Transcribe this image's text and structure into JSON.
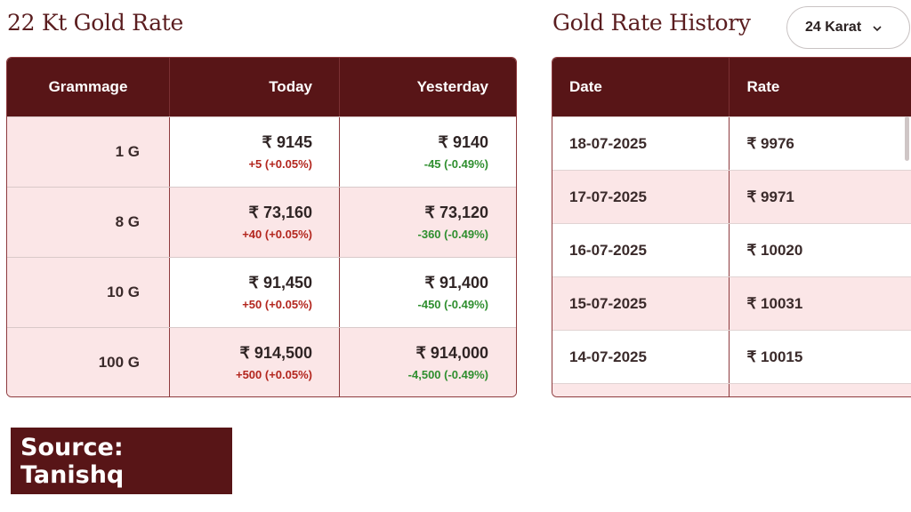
{
  "left_section": {
    "title": "22 Kt Gold Rate",
    "headers": [
      "Grammage",
      "Today",
      "Yesterday"
    ],
    "rows": [
      {
        "grammage": "1 G",
        "today": "₹ 9145",
        "today_change": "+5 (+0.05%)",
        "yesterday": "₹ 9140",
        "yesterday_change": "-45 (-0.49%)"
      },
      {
        "grammage": "8 G",
        "today": "₹ 73,160",
        "today_change": "+40 (+0.05%)",
        "yesterday": "₹ 73,120",
        "yesterday_change": "-360 (-0.49%)"
      },
      {
        "grammage": "10 G",
        "today": "₹ 91,450",
        "today_change": "+50 (+0.05%)",
        "yesterday": "₹ 91,400",
        "yesterday_change": "-450 (-0.49%)"
      },
      {
        "grammage": "100 G",
        "today": "₹ 914,500",
        "today_change": "+500 (+0.05%)",
        "yesterday": "₹ 914,000",
        "yesterday_change": "-4,500 (-0.49%)"
      }
    ]
  },
  "right_section": {
    "title": "Gold Rate History",
    "karat_select": {
      "selected": "24 Karat",
      "icon": "chevron-down-icon"
    },
    "headers": [
      "Date",
      "Rate"
    ],
    "rows": [
      {
        "date": "18-07-2025",
        "rate": "₹ 9976"
      },
      {
        "date": "17-07-2025",
        "rate": "₹ 9971"
      },
      {
        "date": "16-07-2025",
        "rate": "₹ 10020"
      },
      {
        "date": "15-07-2025",
        "rate": "₹ 10031"
      },
      {
        "date": "14-07-2025",
        "rate": "₹ 10015"
      },
      {
        "date": "",
        "rate": ""
      }
    ]
  },
  "source_label": "Source: Tanishq",
  "colors": {
    "header_bg": "#581517",
    "alt_row": "#fbe6e7",
    "title": "#5a1d1f",
    "up": "#b3261e",
    "down": "#2f8f2f"
  }
}
